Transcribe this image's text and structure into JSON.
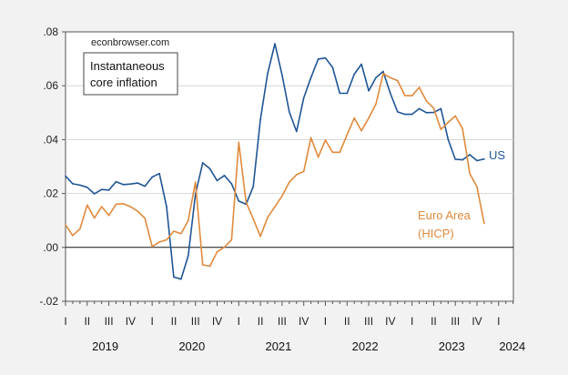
{
  "chart_data": {
    "type": "line",
    "title": "",
    "xlabel": "",
    "ylabel": "",
    "ylim": [
      -0.02,
      0.08
    ],
    "yticks": [
      ".08",
      ".06",
      ".04",
      ".02",
      ".00",
      "-.02"
    ],
    "yticks_values": [
      0.08,
      0.06,
      0.04,
      0.02,
      0.0,
      -0.02
    ],
    "xlim": [
      "2019-01",
      "2024-03"
    ],
    "quarter_labels": [
      "I",
      "II",
      "III",
      "IV"
    ],
    "year_labels": [
      "2019",
      "2020",
      "2021",
      "2022",
      "2023",
      "2024"
    ],
    "grid": true,
    "source_note": "econbrowser.com",
    "legend_box": [
      "Instantaneous",
      "core inflation"
    ],
    "x_start": "2019-01",
    "x_frequency": "monthly",
    "series": [
      {
        "name": "US",
        "color": "#1f5596",
        "values": [
          0.0265,
          0.0236,
          0.0231,
          0.0223,
          0.0199,
          0.0215,
          0.0213,
          0.0244,
          0.0233,
          0.0235,
          0.0239,
          0.0227,
          0.0261,
          0.0274,
          0.0151,
          -0.011,
          -0.0118,
          -0.0031,
          0.0197,
          0.0314,
          0.0292,
          0.0248,
          0.0267,
          0.0236,
          0.0172,
          0.016,
          0.0225,
          0.0475,
          0.0645,
          0.0756,
          0.064,
          0.0503,
          0.043,
          0.0555,
          0.063,
          0.0699,
          0.0703,
          0.0668,
          0.0572,
          0.0572,
          0.0643,
          0.068,
          0.0581,
          0.063,
          0.0653,
          0.0572,
          0.0503,
          0.0494,
          0.0494,
          0.0515,
          0.05,
          0.0501,
          0.0515,
          0.0401,
          0.0327,
          0.0325,
          0.0344,
          0.0322,
          0.0328
        ]
      },
      {
        "name": "Euro Area (HICP)",
        "label_lines": [
          "Euro Area",
          "(HICP)"
        ],
        "color": "#e08a3c",
        "values": [
          0.0083,
          0.0044,
          0.0069,
          0.0157,
          0.0109,
          0.0151,
          0.0119,
          0.016,
          0.0162,
          0.0151,
          0.0134,
          0.0108,
          0.0003,
          0.002,
          0.0028,
          0.006,
          0.0051,
          0.01,
          0.0242,
          -0.0065,
          -0.007,
          -0.0017,
          0.0001,
          0.0028,
          0.039,
          0.0168,
          0.0106,
          0.0041,
          0.0111,
          0.0151,
          0.0191,
          0.0242,
          0.027,
          0.0282,
          0.0407,
          0.0335,
          0.0398,
          0.0353,
          0.0353,
          0.0418,
          0.048,
          0.0433,
          0.048,
          0.0532,
          0.0645,
          0.063,
          0.0619,
          0.0564,
          0.0563,
          0.0594,
          0.0543,
          0.0517,
          0.0438,
          0.0464,
          0.0488,
          0.0441,
          0.0274,
          0.0225,
          0.0089
        ]
      }
    ]
  }
}
